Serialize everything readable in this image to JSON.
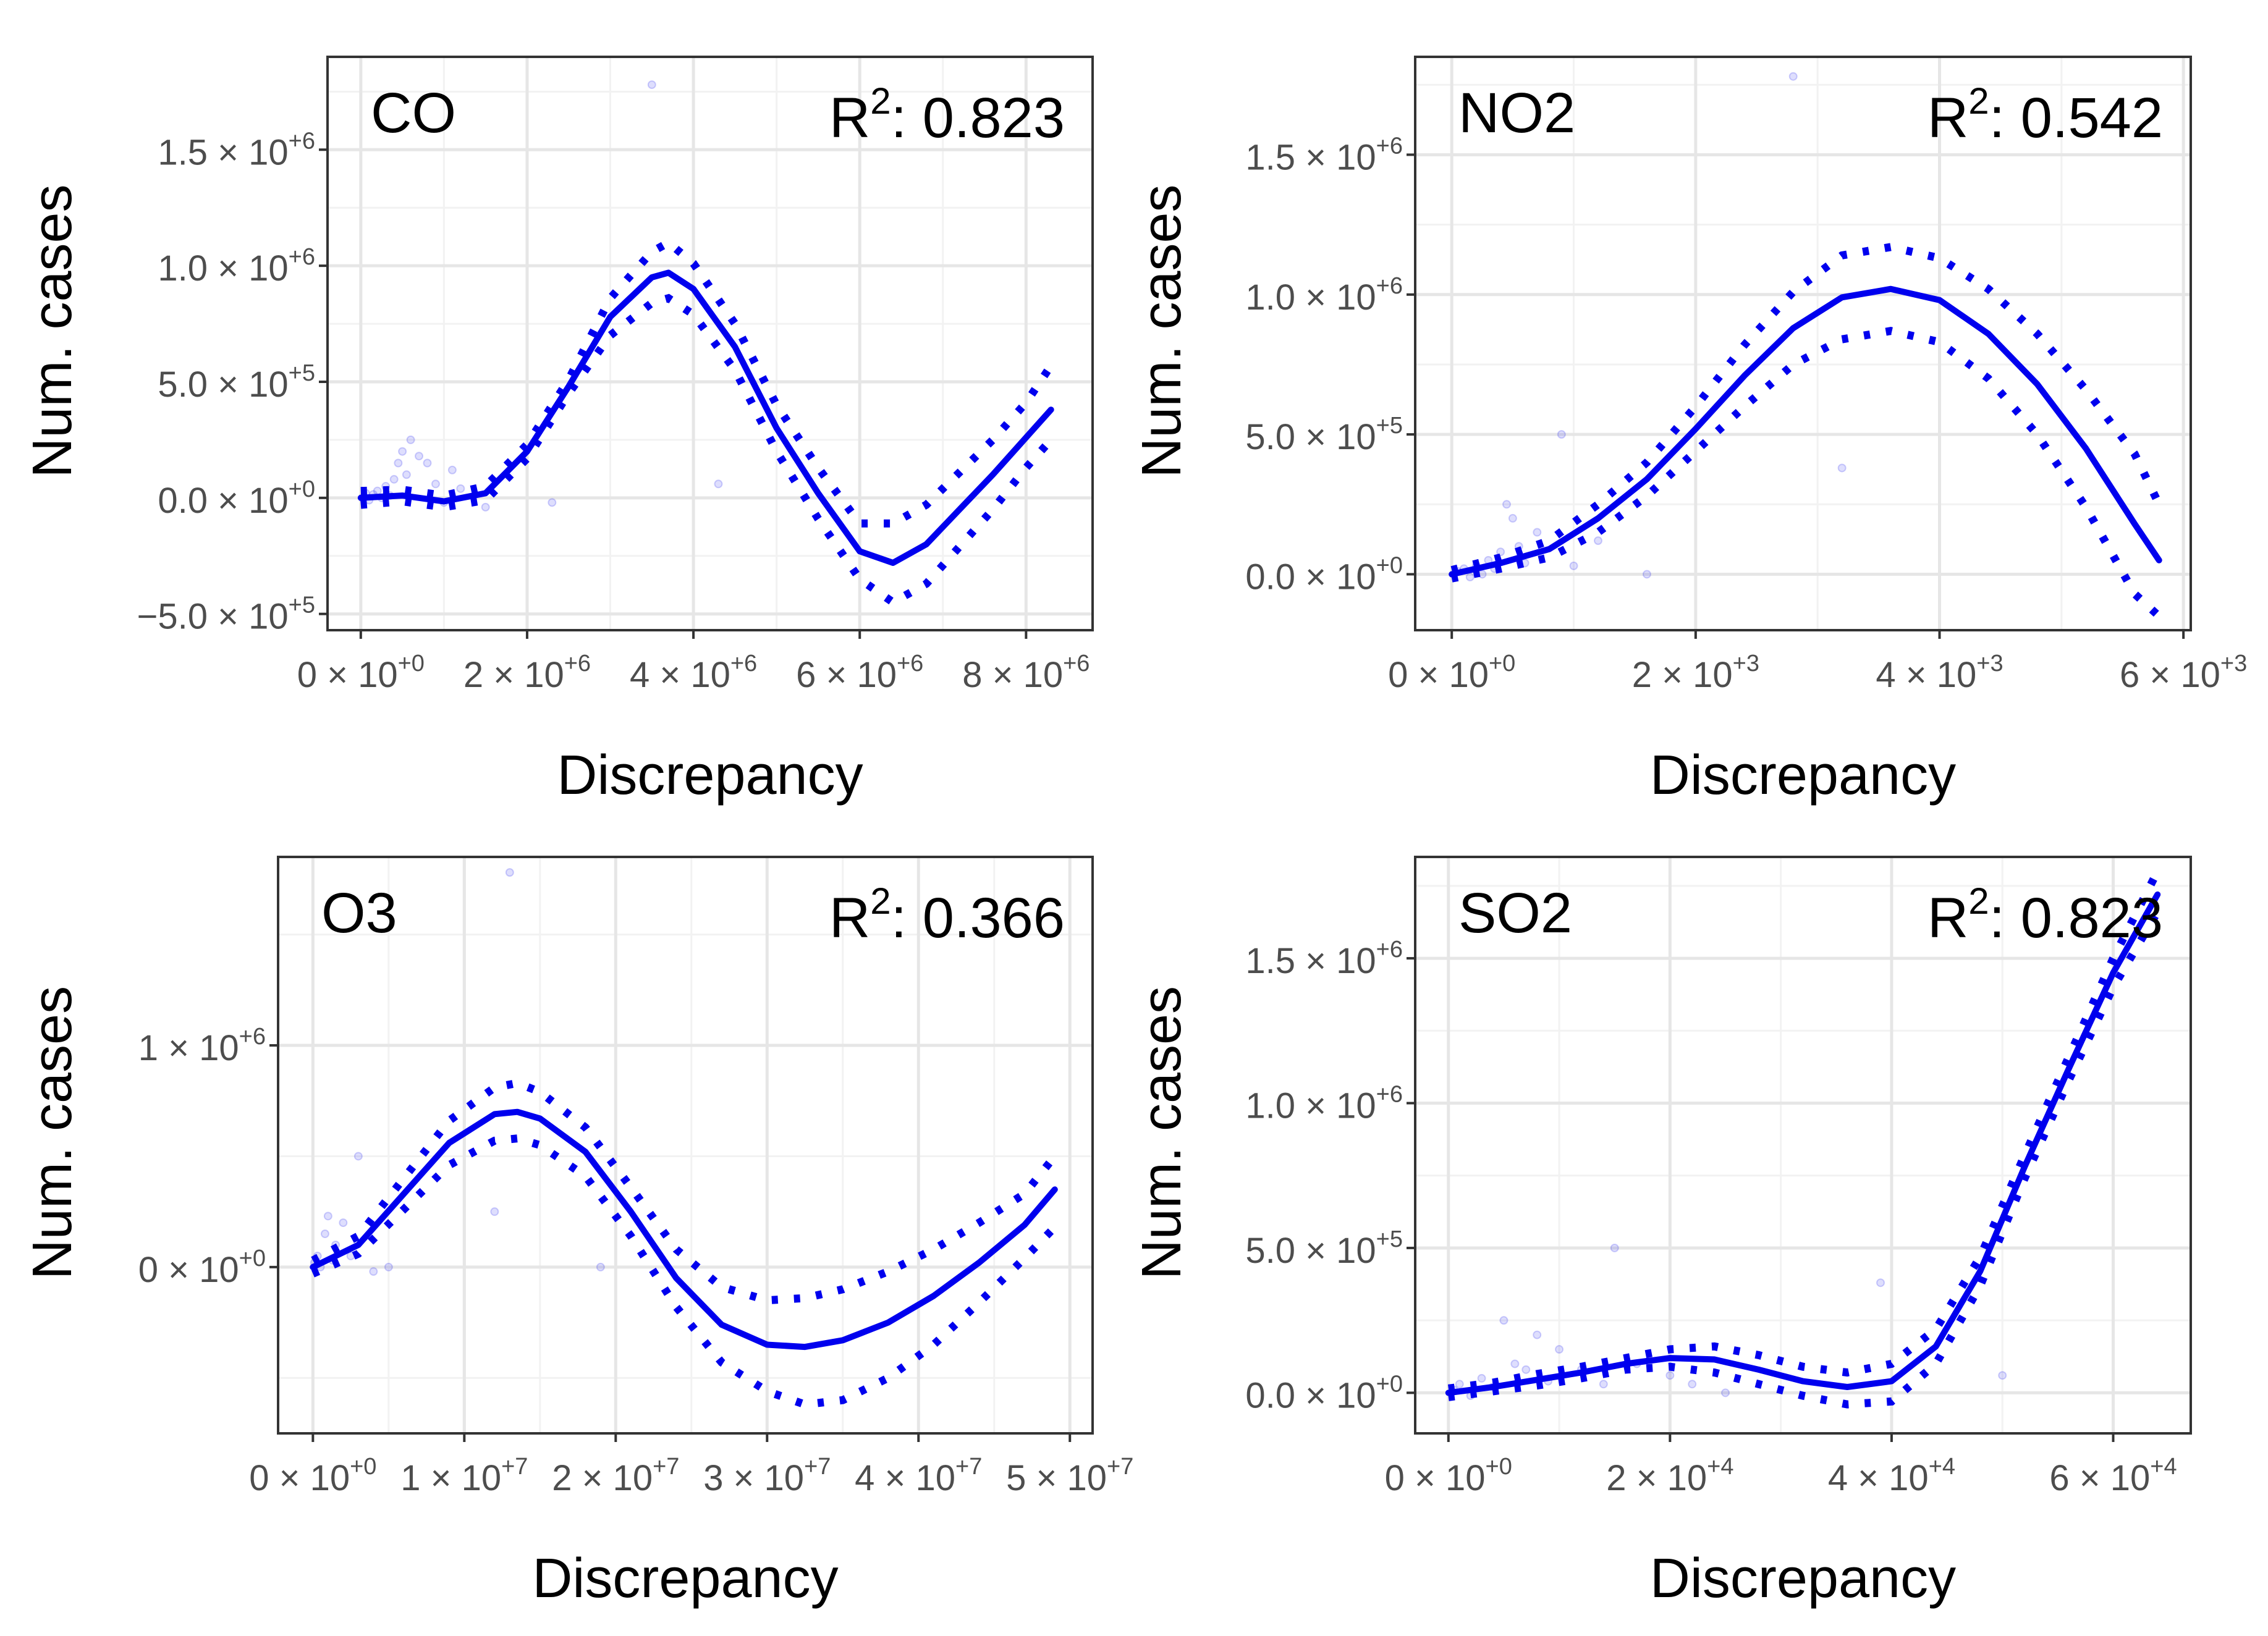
{
  "chart_data": [
    {
      "type": "line",
      "title": "CO",
      "annotation": "R2: 0.823",
      "r2_prefix": "R",
      "r2_exponent": "2",
      "r2_value": ": 0.823",
      "xlabel": "Discrepancy",
      "ylabel": "Num. cases",
      "xlim": [
        -400000,
        8800000
      ],
      "ylim": [
        -570000,
        1900000
      ],
      "x_ticks": [
        0,
        2000000,
        4000000,
        6000000,
        8000000
      ],
      "x_tick_labels": [
        {
          "base": "0 × 10",
          "exp": "+0"
        },
        {
          "base": "2 × 10",
          "exp": "+6"
        },
        {
          "base": "4 × 10",
          "exp": "+6"
        },
        {
          "base": "6 × 10",
          "exp": "+6"
        },
        {
          "base": "8 × 10",
          "exp": "+6"
        }
      ],
      "y_ticks": [
        -500000,
        0,
        500000,
        1000000,
        1500000
      ],
      "y_tick_labels": [
        {
          "base": "−5.0 × 10",
          "exp": "+5"
        },
        {
          "base": "0.0 × 10",
          "exp": "+0"
        },
        {
          "base": "5.0 × 10",
          "exp": "+5"
        },
        {
          "base": "1.0 × 10",
          "exp": "+6"
        },
        {
          "base": "1.5 × 10",
          "exp": "+6"
        }
      ],
      "fit": {
        "x": [
          0,
          500000,
          1000000,
          1500000,
          2000000,
          2500000,
          3000000,
          3500000,
          3700000,
          4000000,
          4500000,
          5000000,
          5500000,
          6000000,
          6400000,
          6800000,
          7200000,
          7600000,
          8000000,
          8300000
        ],
        "y": [
          0,
          10000,
          -15000,
          20000,
          200000,
          480000,
          780000,
          950000,
          970000,
          900000,
          650000,
          300000,
          20000,
          -230000,
          -280000,
          -200000,
          -50000,
          100000,
          260000,
          380000
        ]
      },
      "ci_lower": {
        "x": [
          0,
          500000,
          1000000,
          1500000,
          2000000,
          2500000,
          3000000,
          3500000,
          3700000,
          4000000,
          4500000,
          5000000,
          5500000,
          6000000,
          6400000,
          6800000,
          7200000,
          7600000,
          8000000,
          8300000
        ],
        "y": [
          -30000,
          -15000,
          -40000,
          -10000,
          170000,
          450000,
          700000,
          840000,
          860000,
          790000,
          550000,
          200000,
          -90000,
          -350000,
          -450000,
          -370000,
          -210000,
          -50000,
          130000,
          250000
        ]
      },
      "ci_upper": {
        "x": [
          0,
          500000,
          1000000,
          1500000,
          2000000,
          2500000,
          3000000,
          3500000,
          3700000,
          4000000,
          4500000,
          5000000,
          5500000,
          6000000,
          6400000,
          6800000,
          7200000,
          7600000,
          8000000,
          8300000
        ],
        "y": [
          30000,
          35000,
          10000,
          50000,
          230000,
          510000,
          860000,
          1060000,
          1100000,
          1010000,
          750000,
          400000,
          130000,
          -110000,
          -110000,
          -30000,
          110000,
          250000,
          410000,
          570000
        ]
      },
      "points": {
        "x": [
          20000,
          60000,
          100000,
          150000,
          200000,
          250000,
          300000,
          350000,
          400000,
          450000,
          500000,
          550000,
          600000,
          700000,
          800000,
          900000,
          1000000,
          1100000,
          1200000,
          1500000,
          2300000,
          3500000,
          4300000
        ],
        "y": [
          0,
          20000,
          -10000,
          15000,
          30000,
          0,
          50000,
          10000,
          80000,
          150000,
          200000,
          100000,
          250000,
          180000,
          150000,
          60000,
          -20000,
          120000,
          40000,
          -40000,
          -20000,
          1780000,
          60000
        ]
      }
    },
    {
      "type": "line",
      "title": "NO2",
      "annotation": "R2: 0.542",
      "r2_prefix": "R",
      "r2_exponent": "2",
      "r2_value": ": 0.542",
      "xlabel": "Discrepancy",
      "ylabel": "Num. cases",
      "xlim": [
        -300,
        6060
      ],
      "ylim": [
        -200000,
        1850000
      ],
      "x_ticks": [
        0,
        2000,
        4000,
        6000
      ],
      "x_tick_labels": [
        {
          "base": "0 × 10",
          "exp": "+0"
        },
        {
          "base": "2 × 10",
          "exp": "+3"
        },
        {
          "base": "4 × 10",
          "exp": "+3"
        },
        {
          "base": "6 × 10",
          "exp": "+3"
        }
      ],
      "y_ticks": [
        0,
        500000,
        1000000,
        1500000
      ],
      "y_tick_labels": [
        {
          "base": "0.0 × 10",
          "exp": "+0"
        },
        {
          "base": "5.0 × 10",
          "exp": "+5"
        },
        {
          "base": "1.0 × 10",
          "exp": "+6"
        },
        {
          "base": "1.5 × 10",
          "exp": "+6"
        }
      ],
      "fit": {
        "x": [
          0,
          400,
          800,
          1200,
          1600,
          2000,
          2400,
          2800,
          3200,
          3600,
          4000,
          4400,
          4800,
          5200,
          5600,
          5800
        ],
        "y": [
          0,
          40000,
          90000,
          200000,
          340000,
          520000,
          710000,
          880000,
          990000,
          1020000,
          980000,
          860000,
          680000,
          450000,
          180000,
          50000
        ]
      },
      "ci_lower": {
        "x": [
          0,
          400,
          800,
          1200,
          1600,
          2000,
          2400,
          2800,
          3200,
          3600,
          4000,
          4400,
          4800,
          5200,
          5600,
          5800
        ],
        "y": [
          -15000,
          20000,
          60000,
          150000,
          280000,
          440000,
          600000,
          750000,
          840000,
          870000,
          830000,
          700000,
          500000,
          240000,
          -70000,
          -150000
        ]
      },
      "ci_upper": {
        "x": [
          0,
          400,
          800,
          1200,
          1600,
          2000,
          2400,
          2800,
          3200,
          3600,
          4000,
          4400,
          4800,
          5200,
          5600,
          5800
        ],
        "y": [
          15000,
          60000,
          120000,
          250000,
          400000,
          600000,
          820000,
          1010000,
          1140000,
          1170000,
          1130000,
          1020000,
          860000,
          660000,
          430000,
          250000
        ]
      },
      "points": {
        "x": [
          50,
          100,
          150,
          200,
          250,
          300,
          350,
          400,
          450,
          500,
          550,
          600,
          700,
          900,
          1000,
          1200,
          1600,
          2800,
          3200
        ],
        "y": [
          10000,
          20000,
          -10000,
          30000,
          0,
          50000,
          20000,
          80000,
          250000,
          200000,
          100000,
          40000,
          150000,
          500000,
          30000,
          120000,
          0,
          1780000,
          380000
        ]
      }
    },
    {
      "type": "line",
      "title": "O3",
      "annotation": "R2: 0.366",
      "r2_prefix": "R",
      "r2_exponent": "2",
      "r2_value": ": 0.366",
      "xlabel": "Discrepancy",
      "ylabel": "Num. cases",
      "xlim": [
        -2300000,
        51500000
      ],
      "ylim": [
        -750000,
        1850000
      ],
      "x_ticks": [
        0,
        10000000,
        20000000,
        30000000,
        40000000,
        50000000
      ],
      "x_tick_labels": [
        {
          "base": "0 × 10",
          "exp": "+0"
        },
        {
          "base": "1 × 10",
          "exp": "+7"
        },
        {
          "base": "2 × 10",
          "exp": "+7"
        },
        {
          "base": "3 × 10",
          "exp": "+7"
        },
        {
          "base": "4 × 10",
          "exp": "+7"
        },
        {
          "base": "5 × 10",
          "exp": "+7"
        }
      ],
      "y_ticks": [
        0,
        1000000
      ],
      "y_tick_labels": [
        {
          "base": "0 × 10",
          "exp": "+0"
        },
        {
          "base": "1 × 10",
          "exp": "+6"
        }
      ],
      "fit": {
        "x": [
          0,
          3000000,
          6000000,
          9000000,
          12000000,
          13500000,
          15000000,
          18000000,
          21000000,
          24000000,
          27000000,
          30000000,
          32500000,
          35000000,
          38000000,
          41000000,
          44000000,
          47000000,
          49000000
        ],
        "y": [
          0,
          100000,
          330000,
          560000,
          690000,
          700000,
          670000,
          520000,
          250000,
          -50000,
          -260000,
          -350000,
          -360000,
          -330000,
          -250000,
          -130000,
          20000,
          190000,
          350000
        ]
      },
      "ci_lower": {
        "x": [
          0,
          3000000,
          6000000,
          9000000,
          12000000,
          13500000,
          15000000,
          18000000,
          21000000,
          24000000,
          27000000,
          30000000,
          32500000,
          35000000,
          38000000,
          41000000,
          44000000,
          47000000,
          49000000
        ],
        "y": [
          -30000,
          60000,
          260000,
          460000,
          570000,
          580000,
          550000,
          410000,
          140000,
          -180000,
          -430000,
          -560000,
          -620000,
          -600000,
          -500000,
          -350000,
          -160000,
          40000,
          180000
        ]
      },
      "ci_upper": {
        "x": [
          0,
          3000000,
          6000000,
          9000000,
          12000000,
          13500000,
          15000000,
          18000000,
          21000000,
          24000000,
          27000000,
          30000000,
          32500000,
          35000000,
          38000000,
          41000000,
          44000000,
          47000000,
          49000000
        ],
        "y": [
          30000,
          140000,
          400000,
          660000,
          810000,
          830000,
          790000,
          630000,
          360000,
          80000,
          -90000,
          -150000,
          -140000,
          -100000,
          -20000,
          80000,
          200000,
          330000,
          500000
        ]
      },
      "points": {
        "x": [
          100000,
          300000,
          500000,
          800000,
          1000000,
          1300000,
          1500000,
          2000000,
          2500000,
          3000000,
          4000000,
          5000000,
          12000000,
          13000000,
          19000000
        ],
        "y": [
          20000,
          50000,
          0,
          150000,
          230000,
          30000,
          100000,
          200000,
          50000,
          500000,
          -20000,
          0,
          250000,
          1780000,
          0
        ]
      }
    },
    {
      "type": "line",
      "title": "SO2",
      "annotation": "R2: 0.823",
      "r2_prefix": "R",
      "r2_exponent": "2",
      "r2_value": ": 0.823",
      "xlabel": "Discrepancy",
      "ylabel": "Num. cases",
      "xlim": [
        -3000,
        67000
      ],
      "ylim": [
        -140000,
        1850000
      ],
      "x_ticks": [
        0,
        20000,
        40000,
        60000
      ],
      "x_tick_labels": [
        {
          "base": "0 × 10",
          "exp": "+0"
        },
        {
          "base": "2 × 10",
          "exp": "+4"
        },
        {
          "base": "4 × 10",
          "exp": "+4"
        },
        {
          "base": "6 × 10",
          "exp": "+4"
        }
      ],
      "y_ticks": [
        0,
        500000,
        1000000,
        1500000
      ],
      "y_tick_labels": [
        {
          "base": "0.0 × 10",
          "exp": "+0"
        },
        {
          "base": "5.0 × 10",
          "exp": "+5"
        },
        {
          "base": "1.0 × 10",
          "exp": "+6"
        },
        {
          "base": "1.5 × 10",
          "exp": "+6"
        }
      ],
      "fit": {
        "x": [
          0,
          4000,
          8000,
          12000,
          16000,
          20000,
          24000,
          28000,
          32000,
          36000,
          40000,
          44000,
          48000,
          52000,
          56000,
          60000,
          64000
        ],
        "y": [
          0,
          20000,
          45000,
          70000,
          100000,
          120000,
          115000,
          80000,
          40000,
          20000,
          40000,
          160000,
          420000,
          780000,
          1120000,
          1450000,
          1720000
        ]
      },
      "ci_lower": {
        "x": [
          0,
          4000,
          8000,
          12000,
          16000,
          20000,
          24000,
          28000,
          32000,
          36000,
          40000,
          44000,
          48000,
          52000,
          56000,
          60000,
          64000
        ],
        "y": [
          -15000,
          5000,
          25000,
          50000,
          80000,
          90000,
          70000,
          30000,
          -10000,
          -40000,
          -30000,
          100000,
          370000,
          740000,
          1080000,
          1400000,
          1660000
        ]
      },
      "ci_upper": {
        "x": [
          0,
          4000,
          8000,
          12000,
          16000,
          20000,
          24000,
          28000,
          32000,
          36000,
          40000,
          44000,
          48000,
          52000,
          56000,
          60000,
          64000
        ],
        "y": [
          15000,
          35000,
          65000,
          90000,
          120000,
          150000,
          160000,
          130000,
          90000,
          70000,
          100000,
          220000,
          470000,
          820000,
          1160000,
          1500000,
          1800000
        ]
      },
      "points": {
        "x": [
          500,
          1000,
          2000,
          3000,
          4000,
          5000,
          6000,
          7000,
          8000,
          9000,
          10000,
          12000,
          14000,
          15000,
          17000,
          20000,
          22000,
          25000,
          39000,
          50000
        ],
        "y": [
          10000,
          30000,
          -10000,
          50000,
          20000,
          250000,
          100000,
          80000,
          200000,
          40000,
          150000,
          80000,
          30000,
          500000,
          100000,
          60000,
          30000,
          0,
          380000,
          60000
        ]
      }
    }
  ]
}
